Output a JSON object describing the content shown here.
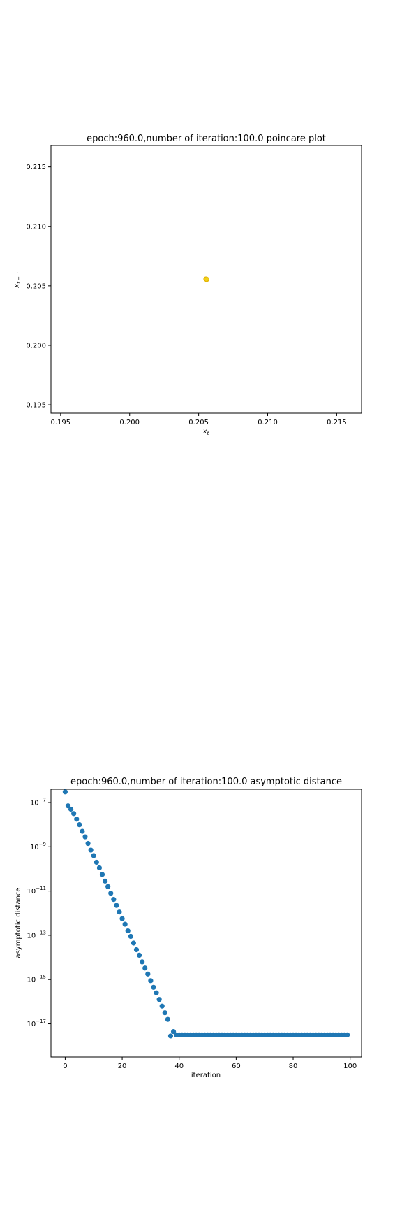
{
  "chart_data": [
    {
      "type": "scatter",
      "title": "epoch:960.0,number of iteration:100.0 poincare plot",
      "xlabel": "x_t",
      "ylabel": "x_{t-1}",
      "xlim": [
        0.1943,
        0.2168
      ],
      "ylim": [
        0.1943,
        0.2168
      ],
      "xticks": [
        0.195,
        0.2,
        0.205,
        0.21,
        0.215
      ],
      "yticks": [
        0.195,
        0.2,
        0.205,
        0.21,
        0.215
      ],
      "xtick_labels": [
        "0.195",
        "0.200",
        "0.205",
        "0.210",
        "0.215"
      ],
      "ytick_labels": [
        "0.195",
        "0.200",
        "0.205",
        "0.210",
        "0.215"
      ],
      "marker_color": "#f2d21b",
      "marker_edge": "#e0b000",
      "points": [
        {
          "x": 0.20555,
          "y": 0.20555
        },
        {
          "x": 0.20552,
          "y": 0.20558
        },
        {
          "x": 0.20558,
          "y": 0.20552
        },
        {
          "x": 0.20557,
          "y": 0.20557
        }
      ],
      "grid": false
    },
    {
      "type": "scatter",
      "title": "epoch:960.0,number of iteration:100.0 asymptotic distance",
      "xlabel": "iteration",
      "ylabel": "asymptotic distance",
      "yscale": "log",
      "xlim": [
        -5,
        104
      ],
      "ylim_log10": [
        -18.5,
        -6.4
      ],
      "xticks": [
        0,
        20,
        40,
        60,
        80,
        100
      ],
      "xtick_labels": [
        "0",
        "20",
        "40",
        "60",
        "80",
        "100"
      ],
      "yticks_exp": [
        -7,
        -9,
        -11,
        -13,
        -15,
        -17
      ],
      "ytick_base": "10",
      "marker_color": "#1f77b4",
      "x": [
        0,
        1,
        2,
        3,
        4,
        5,
        6,
        7,
        8,
        9,
        10,
        11,
        12,
        13,
        14,
        15,
        16,
        17,
        18,
        19,
        20,
        21,
        22,
        23,
        24,
        25,
        26,
        27,
        28,
        29,
        30,
        31,
        32,
        33,
        34,
        35,
        36,
        37,
        38,
        39,
        40,
        41,
        42,
        43,
        44,
        45,
        46,
        47,
        48,
        49,
        50,
        51,
        52,
        53,
        54,
        55,
        56,
        57,
        58,
        59,
        60,
        61,
        62,
        63,
        64,
        65,
        66,
        67,
        68,
        69,
        70,
        71,
        72,
        73,
        74,
        75,
        76,
        77,
        78,
        79,
        80,
        81,
        82,
        83,
        84,
        85,
        86,
        87,
        88,
        89,
        90,
        91,
        92,
        93,
        94,
        95,
        96,
        97,
        98,
        99
      ],
      "log10_y": [
        -6.52,
        -7.15,
        -7.3,
        -7.5,
        -7.75,
        -8.0,
        -8.3,
        -8.55,
        -8.85,
        -9.15,
        -9.4,
        -9.7,
        -9.95,
        -10.25,
        -10.55,
        -10.8,
        -11.1,
        -11.38,
        -11.65,
        -11.95,
        -12.25,
        -12.5,
        -12.8,
        -13.05,
        -13.35,
        -13.65,
        -13.9,
        -14.2,
        -14.48,
        -14.75,
        -15.05,
        -15.35,
        -15.6,
        -15.9,
        -16.2,
        -16.5,
        -16.8,
        -17.55,
        -17.35,
        -17.5,
        -17.5,
        -17.5,
        -17.5,
        -17.5,
        -17.5,
        -17.5,
        -17.5,
        -17.5,
        -17.5,
        -17.5,
        -17.5,
        -17.5,
        -17.5,
        -17.5,
        -17.5,
        -17.5,
        -17.5,
        -17.5,
        -17.5,
        -17.5,
        -17.5,
        -17.5,
        -17.5,
        -17.5,
        -17.5,
        -17.5,
        -17.5,
        -17.5,
        -17.5,
        -17.5,
        -17.5,
        -17.5,
        -17.5,
        -17.5,
        -17.5,
        -17.5,
        -17.5,
        -17.5,
        -17.5,
        -17.5,
        -17.5,
        -17.5,
        -17.5,
        -17.5,
        -17.5,
        -17.5,
        -17.5,
        -17.5,
        -17.5,
        -17.5,
        -17.5,
        -17.5,
        -17.5,
        -17.5,
        -17.5,
        -17.5,
        -17.5,
        -17.5,
        -17.5,
        -17.5
      ],
      "grid": false
    }
  ]
}
